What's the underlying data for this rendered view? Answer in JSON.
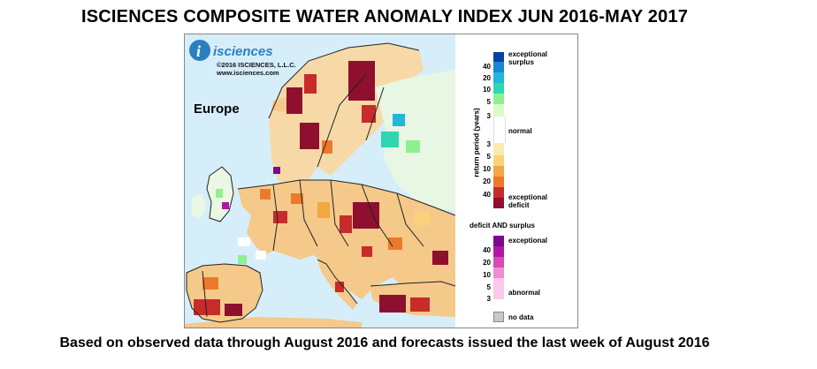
{
  "title": "ISCIENCES COMPOSITE WATER ANOMALY INDEX JUN 2016-MAY 2017",
  "footer": "Based on observed data through August 2016 and forecasts issued the last week of August 2016",
  "map": {
    "region_label": "Europe",
    "logo_text": "isciences",
    "copyright": "©2016 ISCIENCES, L.L.C.",
    "website": "www.isciences.com"
  },
  "legend": {
    "axis_label": "return period (years)",
    "top_label_1": "exceptional",
    "top_label_2": "surplus",
    "normal_label": "normal",
    "deficit_label_1": "exceptional",
    "deficit_label_2": "deficit",
    "surplus_ticks": [
      "40",
      "20",
      "10",
      "5",
      "3"
    ],
    "deficit_ticks": [
      "3",
      "5",
      "10",
      "20",
      "40"
    ],
    "both_title": "deficit AND surplus",
    "both_top": "exceptional",
    "both_bottom": "abnormal",
    "both_ticks": [
      "40",
      "20",
      "10",
      "5",
      "3"
    ],
    "nodata_label": "no data",
    "colors": {
      "surplus": [
        "#0a3fa8",
        "#1a86d6",
        "#22b7d6",
        "#2fd6b0",
        "#8ef08e",
        "#d9fbc8"
      ],
      "normal": "#ffffff",
      "deficit": [
        "#fbeab0",
        "#fbd27a",
        "#f4a742",
        "#ec7a2c",
        "#c72b2b",
        "#8f0f2e"
      ],
      "both": [
        "#7a0a8f",
        "#b216a8",
        "#d94ab8",
        "#ee8fd2",
        "#fbc7ea"
      ],
      "nodata": "#c8c8c8",
      "water": "#d6eefa"
    }
  }
}
